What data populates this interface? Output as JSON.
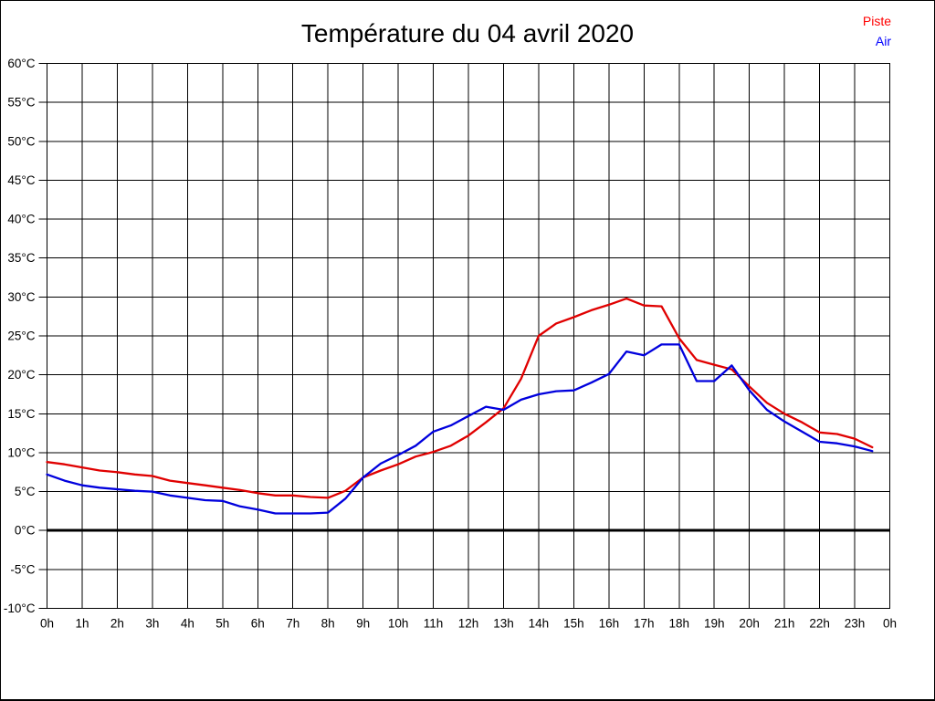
{
  "title": "Température du 04 avril 2020",
  "legend": {
    "items": [
      {
        "label": "Piste",
        "color": "#ff0000"
      },
      {
        "label": "Air",
        "color": "#0000ff"
      }
    ]
  },
  "chart_data": {
    "type": "line",
    "title": "Température du 04 avril 2020",
    "xlabel": "",
    "ylabel": "",
    "x_unit": "hours",
    "xlim": [
      0,
      24
    ],
    "ylim": [
      -10,
      60
    ],
    "grid": true,
    "legend_position": "top-right",
    "zero_line": {
      "value": 0,
      "stroke_width": 3
    },
    "axis_color": "#000000",
    "grid_color": "#000000",
    "x_ticks": {
      "values": [
        0,
        1,
        2,
        3,
        4,
        5,
        6,
        7,
        8,
        9,
        10,
        11,
        12,
        13,
        14,
        15,
        16,
        17,
        18,
        19,
        20,
        21,
        22,
        23,
        24
      ],
      "labels": [
        "0h",
        "1h",
        "2h",
        "3h",
        "4h",
        "5h",
        "6h",
        "7h",
        "8h",
        "9h",
        "10h",
        "11h",
        "12h",
        "13h",
        "14h",
        "15h",
        "16h",
        "17h",
        "18h",
        "19h",
        "20h",
        "21h",
        "22h",
        "23h",
        "0h"
      ]
    },
    "y_ticks": {
      "values": [
        60,
        55,
        50,
        45,
        40,
        35,
        30,
        25,
        20,
        15,
        10,
        5,
        0,
        -5,
        -10
      ],
      "labels": [
        "60°C",
        "55°C",
        "50°C",
        "45°C",
        "40°C",
        "35°C",
        "30°C",
        "25°C",
        "20°C",
        "15°C",
        "10°C",
        "5°C",
        "0°C",
        "-5°C",
        "-10°C"
      ]
    },
    "x": [
      0,
      0.5,
      1,
      1.5,
      2,
      2.5,
      3,
      3.5,
      4,
      4.5,
      5,
      5.5,
      6,
      6.5,
      7,
      7.5,
      8,
      8.5,
      9,
      9.5,
      10,
      10.5,
      11,
      11.5,
      12,
      12.5,
      13,
      13.5,
      14,
      14.5,
      15,
      15.5,
      16,
      16.5,
      17,
      17.5,
      18,
      18.5,
      19,
      19.5,
      20,
      20.5,
      21,
      21.5,
      22,
      22.5,
      23,
      23.5
    ],
    "series": [
      {
        "name": "Piste",
        "color": "#e00000",
        "values": [
          8.8,
          8.5,
          8.1,
          7.7,
          7.5,
          7.2,
          7.0,
          6.4,
          6.1,
          5.8,
          5.5,
          5.2,
          4.8,
          4.5,
          4.5,
          4.3,
          4.2,
          5.1,
          6.8,
          7.7,
          8.5,
          9.5,
          10.1,
          10.9,
          12.2,
          13.9,
          15.7,
          19.5,
          25.0,
          26.6,
          27.4,
          28.3,
          29.0,
          29.8,
          28.9,
          28.8,
          24.7,
          21.9,
          21.3,
          20.7,
          18.5,
          16.4,
          15.0,
          13.9,
          12.6,
          12.4,
          11.8,
          10.7
        ]
      },
      {
        "name": "Air",
        "color": "#0000dd",
        "values": [
          7.2,
          6.4,
          5.8,
          5.5,
          5.3,
          5.1,
          5.0,
          4.5,
          4.2,
          3.9,
          3.8,
          3.1,
          2.7,
          2.2,
          2.2,
          2.2,
          2.3,
          4.1,
          6.8,
          8.6,
          9.7,
          10.9,
          12.7,
          13.5,
          14.7,
          15.9,
          15.5,
          16.8,
          17.5,
          17.9,
          18.0,
          19.0,
          20.1,
          23.0,
          22.5,
          23.9,
          23.9,
          19.2,
          19.2,
          21.2,
          18.0,
          15.5,
          14.0,
          12.7,
          11.4,
          11.2,
          10.8,
          10.2
        ]
      }
    ]
  }
}
